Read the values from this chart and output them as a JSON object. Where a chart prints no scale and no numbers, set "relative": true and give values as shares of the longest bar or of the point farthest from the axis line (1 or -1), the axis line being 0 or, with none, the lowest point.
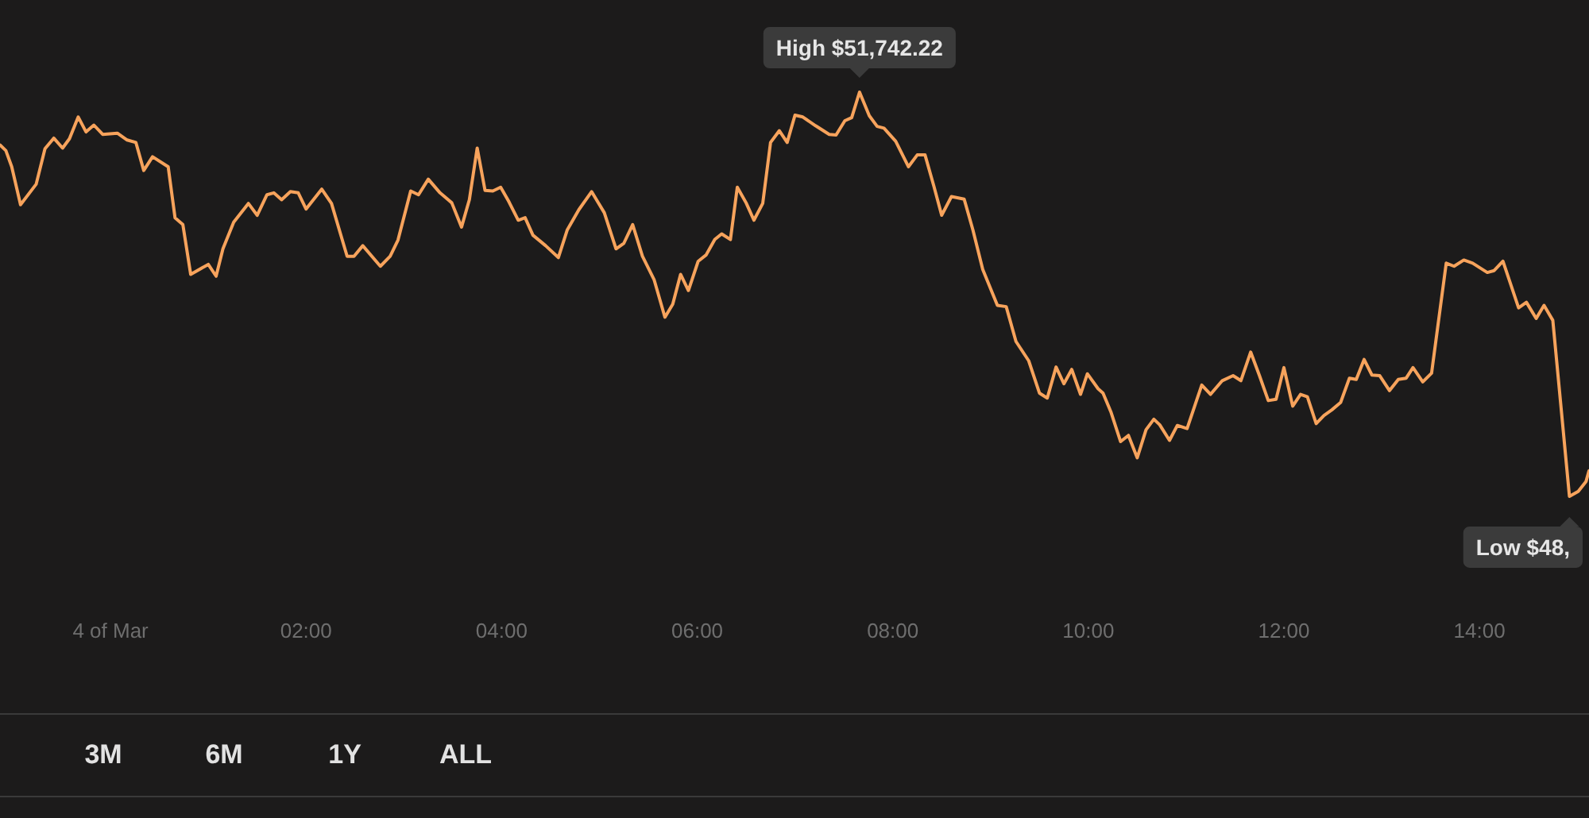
{
  "chart_data": {
    "type": "line",
    "relative": true,
    "marker": "none",
    "color": "#f7a35c",
    "x": [
      -1.13,
      -1.07,
      -1.01,
      -0.92,
      -0.76,
      -0.67,
      -0.58,
      -0.49,
      -0.42,
      -0.33,
      -0.25,
      -0.17,
      -0.08,
      0.07,
      0.17,
      0.26,
      0.34,
      0.43,
      0.59,
      0.66,
      0.74,
      0.82,
      1.0,
      1.08,
      1.15,
      1.26,
      1.41,
      1.5,
      1.6,
      1.67,
      1.75,
      1.84,
      1.92,
      2.0,
      2.16,
      2.26,
      2.42,
      2.49,
      2.58,
      2.76,
      2.86,
      2.94,
      3.07,
      3.15,
      3.25,
      3.37,
      3.49,
      3.59,
      3.67,
      3.75,
      3.83,
      3.91,
      3.99,
      4.07,
      4.17,
      4.24,
      4.32,
      4.45,
      4.58,
      4.67,
      4.79,
      4.92,
      5.05,
      5.17,
      5.25,
      5.34,
      5.44,
      5.56,
      5.67,
      5.75,
      5.83,
      5.91,
      6.01,
      6.09,
      6.18,
      6.25,
      6.34,
      6.41,
      6.5,
      6.58,
      6.67,
      6.75,
      6.84,
      6.92,
      7.0,
      7.08,
      7.21,
      7.35,
      7.42,
      7.51,
      7.58,
      7.66,
      7.76,
      7.84,
      7.91,
      8.03,
      8.16,
      8.25,
      8.33,
      8.42,
      8.5,
      8.6,
      8.73,
      8.82,
      8.92,
      9.07,
      9.16,
      9.26,
      9.39,
      9.5,
      9.58,
      9.67,
      9.75,
      9.83,
      9.92,
      9.99,
      10.1,
      10.15,
      10.23,
      10.33,
      10.41,
      10.5,
      10.59,
      10.67,
      10.73,
      10.83,
      10.91,
      11.01,
      11.16,
      11.25,
      11.37,
      11.48,
      11.56,
      11.66,
      11.75,
      11.84,
      11.92,
      12.0,
      12.09,
      12.17,
      12.24,
      12.33,
      12.41,
      12.49,
      12.58,
      12.67,
      12.74,
      12.82,
      12.9,
      12.98,
      13.08,
      13.17,
      13.25,
      13.32,
      13.42,
      13.51,
      13.66,
      13.74,
      13.84,
      13.93,
      14.08,
      14.15,
      14.24,
      14.4,
      14.48,
      14.58,
      14.66,
      14.75,
      14.92,
      15.01,
      15.09,
      15.12
    ],
    "values": [
      0.915,
      0.906,
      0.88,
      0.819,
      0.852,
      0.909,
      0.926,
      0.91,
      0.925,
      0.96,
      0.936,
      0.947,
      0.932,
      0.934,
      0.923,
      0.919,
      0.874,
      0.896,
      0.88,
      0.798,
      0.787,
      0.707,
      0.723,
      0.704,
      0.748,
      0.791,
      0.821,
      0.802,
      0.835,
      0.838,
      0.827,
      0.84,
      0.838,
      0.812,
      0.844,
      0.821,
      0.736,
      0.736,
      0.753,
      0.72,
      0.736,
      0.762,
      0.841,
      0.835,
      0.86,
      0.838,
      0.822,
      0.783,
      0.827,
      0.91,
      0.842,
      0.841,
      0.847,
      0.825,
      0.794,
      0.798,
      0.77,
      0.753,
      0.734,
      0.778,
      0.811,
      0.84,
      0.806,
      0.748,
      0.757,
      0.787,
      0.736,
      0.698,
      0.638,
      0.659,
      0.707,
      0.681,
      0.728,
      0.738,
      0.763,
      0.772,
      0.763,
      0.847,
      0.822,
      0.794,
      0.821,
      0.919,
      0.938,
      0.919,
      0.963,
      0.96,
      0.946,
      0.932,
      0.931,
      0.954,
      0.959,
      1,
      0.962,
      0.945,
      0.942,
      0.921,
      0.88,
      0.899,
      0.899,
      0.849,
      0.802,
      0.832,
      0.828,
      0.778,
      0.715,
      0.657,
      0.655,
      0.599,
      0.568,
      0.516,
      0.508,
      0.558,
      0.531,
      0.554,
      0.514,
      0.547,
      0.523,
      0.516,
      0.486,
      0.438,
      0.448,
      0.412,
      0.457,
      0.474,
      0.465,
      0.44,
      0.464,
      0.459,
      0.529,
      0.514,
      0.536,
      0.544,
      0.536,
      0.582,
      0.544,
      0.504,
      0.506,
      0.557,
      0.495,
      0.514,
      0.51,
      0.467,
      0.48,
      0.489,
      0.501,
      0.54,
      0.538,
      0.57,
      0.545,
      0.544,
      0.52,
      0.538,
      0.54,
      0.557,
      0.534,
      0.548,
      0.725,
      0.72,
      0.73,
      0.725,
      0.71,
      0.713,
      0.728,
      0.653,
      0.662,
      0.636,
      0.657,
      0.633,
      0.35,
      0.358,
      0.374,
      0.391
    ],
    "xlim": [
      -1.13,
      15.12
    ],
    "xticks": [
      {
        "value": 0,
        "label": "4 of Mar"
      },
      {
        "value": 2,
        "label": "02:00"
      },
      {
        "value": 4,
        "label": "04:00"
      },
      {
        "value": 6,
        "label": "06:00"
      },
      {
        "value": 8,
        "label": "08:00"
      },
      {
        "value": 10,
        "label": "10:00"
      },
      {
        "value": 12,
        "label": "12:00"
      },
      {
        "value": 14,
        "label": "14:00"
      }
    ],
    "annotations": [
      {
        "text": "High $51,742.22",
        "x": 7.66,
        "y": 1
      },
      {
        "text": "Low $48,",
        "x": 14.92,
        "y": 0.35
      },
      "3M",
      "6M",
      "1Y",
      "ALL"
    ]
  }
}
